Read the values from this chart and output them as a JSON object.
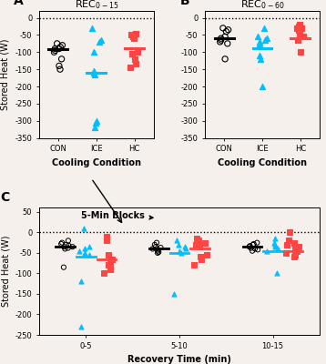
{
  "panel_A": {
    "title": "REC$_{0-15}$",
    "xlabel": "Cooling Condition",
    "ylabel": "Stored Heat (W)",
    "ylim": [
      -350,
      20
    ],
    "yticks": [
      0,
      -50,
      -100,
      -150,
      -200,
      -250,
      -300,
      -350
    ],
    "xticks": [
      1,
      2,
      3
    ],
    "xticklabels": [
      "CON",
      "ICE",
      "HC"
    ],
    "CON": [
      -75,
      -80,
      -85,
      -90,
      -90,
      -95,
      -100,
      -120,
      -140,
      -150
    ],
    "ICE": [
      -30,
      -65,
      -70,
      -100,
      -155,
      -160,
      -165,
      -300,
      -305,
      -320
    ],
    "HC": [
      -45,
      -50,
      -55,
      -55,
      -60,
      -100,
      -105,
      -120,
      -135,
      -145
    ],
    "CON_mean": -92,
    "ICE_mean": -160,
    "HC_mean": -88
  },
  "panel_B": {
    "title": "REC$_{0-60}$",
    "xlabel": "Cooling Condition",
    "ylabel": "Stored Heat (W)",
    "ylim": [
      -350,
      20
    ],
    "yticks": [
      0,
      -50,
      -100,
      -150,
      -200,
      -250,
      -300,
      -350
    ],
    "xticks": [
      1,
      2,
      3
    ],
    "xticklabels": [
      "CON",
      "ICE",
      "HC"
    ],
    "CON": [
      -30,
      -35,
      -40,
      -55,
      -60,
      -65,
      -70,
      -75,
      -120
    ],
    "ICE": [
      -30,
      -55,
      -60,
      -65,
      -70,
      -75,
      -110,
      -120,
      -200
    ],
    "HC": [
      -20,
      -25,
      -30,
      -30,
      -35,
      -40,
      -50,
      -55,
      -65,
      -100
    ],
    "CON_mean": -60,
    "ICE_mean": -88,
    "HC_mean": -60
  },
  "panel_C": {
    "xlabel": "Recovery Time (min)",
    "ylabel": "Stored Heat (W)",
    "ylim": [
      -250,
      60
    ],
    "yticks": [
      50,
      0,
      -50,
      -100,
      -150,
      -200,
      -250
    ],
    "annotation": "5-Min Blocks",
    "CON_0_5": [
      -20,
      -25,
      -28,
      -30,
      -32,
      -35,
      -35,
      -38,
      -40,
      -85
    ],
    "ICE_0_5": [
      10,
      -35,
      -40,
      -45,
      -50,
      -55,
      -120,
      -230
    ],
    "HC_0_5": [
      -10,
      -20,
      -55,
      -65,
      -75,
      -80,
      -90,
      -100
    ],
    "CON_mean_0_5": -35,
    "ICE_mean_0_5": -60,
    "HC_mean_0_5": -65,
    "CON_5_10": [
      -25,
      -30,
      -35,
      -37,
      -40,
      -42,
      -45,
      -48,
      -50
    ],
    "ICE_5_10": [
      -20,
      -30,
      -35,
      -40,
      -45,
      -50,
      -150
    ],
    "HC_5_10": [
      -15,
      -20,
      -25,
      -30,
      -35,
      -55,
      -60,
      -65,
      -80
    ],
    "CON_mean_5_10": -40,
    "ICE_mean_5_10": -50,
    "HC_mean_5_10": -38,
    "CON_10_15": [
      -25,
      -28,
      -30,
      -33,
      -35,
      -38,
      -40,
      -42,
      -45
    ],
    "ICE_10_15": [
      -15,
      -25,
      -30,
      -35,
      -40,
      -45,
      -100
    ],
    "HC_10_15": [
      0,
      -20,
      -25,
      -30,
      -35,
      -40,
      -45,
      -50,
      -55,
      -60
    ],
    "CON_mean_10_15": -35,
    "ICE_mean_10_15": -45,
    "HC_mean_10_15": -45
  },
  "colors": {
    "CON": "#000000",
    "ICE": "#00BFFF",
    "HC": "#FF4444"
  },
  "background": "#f5f0eb"
}
